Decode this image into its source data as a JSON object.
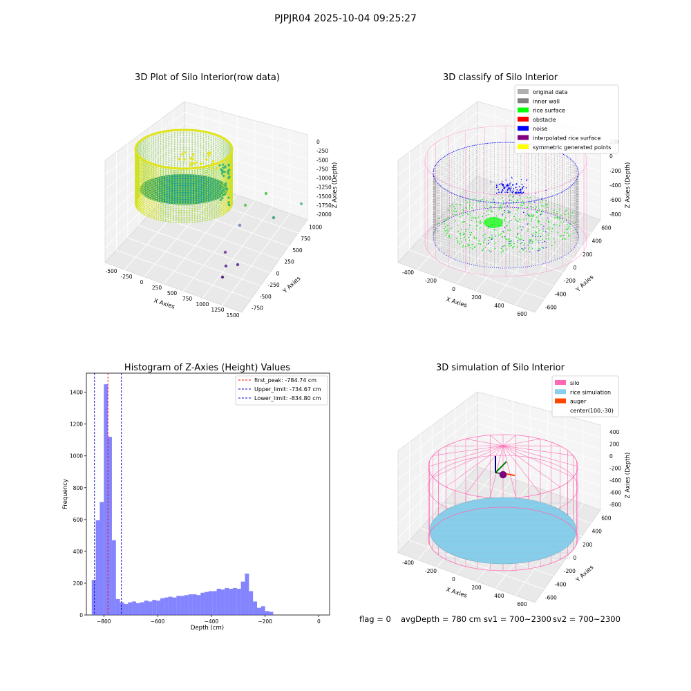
{
  "suptitle": "PJPJR04 2025-10-04 09:25:27",
  "footer": {
    "flag": "flag = 0",
    "avg_depth": "avgDepth = 780 cm",
    "sv1": "sv1 = 700~2300",
    "sv2": "sv2 = 700~2300"
  },
  "colors": {
    "hist_bar": "#5050ff",
    "first_peak": "#ff0000",
    "limits": "#0000cc",
    "silo": "#ff69b4",
    "rice_simulation": "#87ceeb",
    "auger": "#ff4500",
    "grid_pane": "#f2f2f2"
  },
  "chart_data": [
    {
      "type": "scatter",
      "subtype": "3d",
      "title": "3D Plot of Silo Interior(row data)",
      "xlabel": "X Axies",
      "ylabel": "Y Axies",
      "zlabel": "Z Axies (Depth)",
      "xticks": [
        "-500",
        "-250",
        "0",
        "250",
        "500",
        "750",
        "1000",
        "1250",
        "1500"
      ],
      "yticks": [
        "-750",
        "-500",
        "-250",
        "0",
        "250",
        "500",
        "750",
        "1000"
      ],
      "zticks": [
        "0",
        "-250",
        "-500",
        "-750",
        "-1000",
        "-1250",
        "-1500",
        "-1750",
        "-2000"
      ],
      "colormap": "viridis",
      "grid": true
    },
    {
      "type": "scatter",
      "subtype": "3d",
      "title": "3D classify of Silo Interior",
      "xlabel": "X Axies",
      "ylabel": "Y Axies",
      "zlabel": "Z Axies (Depth)",
      "xticks": [
        "-400",
        "-200",
        "0",
        "200",
        "400",
        "600"
      ],
      "yticks": [
        "-600",
        "-400",
        "-200",
        "0",
        "200",
        "400",
        "600"
      ],
      "zticks": [
        "200",
        "0",
        "-200",
        "-400",
        "-600",
        "-800"
      ],
      "legend_position": "top-right",
      "legend": [
        {
          "label": "original data",
          "color": "#b0b0b0"
        },
        {
          "label": "inner wall",
          "color": "#808080"
        },
        {
          "label": "rice surface",
          "color": "#00ff00"
        },
        {
          "label": "obstacle",
          "color": "#ff0000"
        },
        {
          "label": "noise",
          "color": "#0000ff"
        },
        {
          "label": "interpolated rice surface",
          "color": "#800080"
        },
        {
          "label": "symmetric generated points",
          "color": "#ffff00"
        }
      ],
      "grid": true
    },
    {
      "type": "bar",
      "subtype": "histogram",
      "title": "Histogram of Z-Axies (Height) Values",
      "xlabel": "Depth (cm)",
      "ylabel": "Frequency",
      "xlim": [
        -865,
        40
      ],
      "ylim": [
        0,
        1520
      ],
      "xticks": [
        -800,
        -600,
        -400,
        -200,
        0
      ],
      "yticks": [
        0,
        200,
        400,
        600,
        800,
        1000,
        1200,
        1400
      ],
      "bins": {
        "start": -845,
        "width": 15,
        "counts": [
          220,
          595,
          710,
          1450,
          1120,
          470,
          100,
          80,
          70,
          80,
          85,
          75,
          80,
          90,
          85,
          95,
          90,
          105,
          110,
          115,
          110,
          120,
          120,
          125,
          130,
          130,
          125,
          140,
          145,
          150,
          150,
          165,
          160,
          170,
          165,
          170,
          165,
          210,
          260,
          150,
          85,
          45,
          55,
          25,
          20
        ]
      },
      "vlines": [
        {
          "x": -784.74,
          "label": "first_peak: -784.74 cm",
          "color": "#ff0000"
        },
        {
          "x": -734.67,
          "label": "Upper_limit: -734.67 cm",
          "color": "#0000cc"
        },
        {
          "x": -834.8,
          "label": "Lower_limit: -834.80 cm",
          "color": "#0000cc"
        }
      ],
      "legend_position": "top-right",
      "grid": false
    },
    {
      "type": "scatter",
      "subtype": "3d",
      "title": "3D simulation of Silo Interior",
      "xlabel": "X Axies",
      "ylabel": "Y Axies",
      "zlabel": "Z Axies (Depth)",
      "xticks": [
        "-400",
        "-200",
        "0",
        "200",
        "400",
        "600"
      ],
      "yticks": [
        "-600",
        "-400",
        "-200",
        "0",
        "200",
        "400",
        "600"
      ],
      "zticks": [
        "400",
        "200",
        "0",
        "-200",
        "-400",
        "-600",
        "-800"
      ],
      "legend_position": "top-right",
      "legend": [
        {
          "label": "silo",
          "color": "#ff69b4"
        },
        {
          "label": "rice simulation",
          "color": "#87ceeb"
        },
        {
          "label": "auger",
          "color": "#ff4500"
        },
        {
          "label": "center(100,-30)",
          "color": ""
        }
      ],
      "grid": true
    }
  ]
}
